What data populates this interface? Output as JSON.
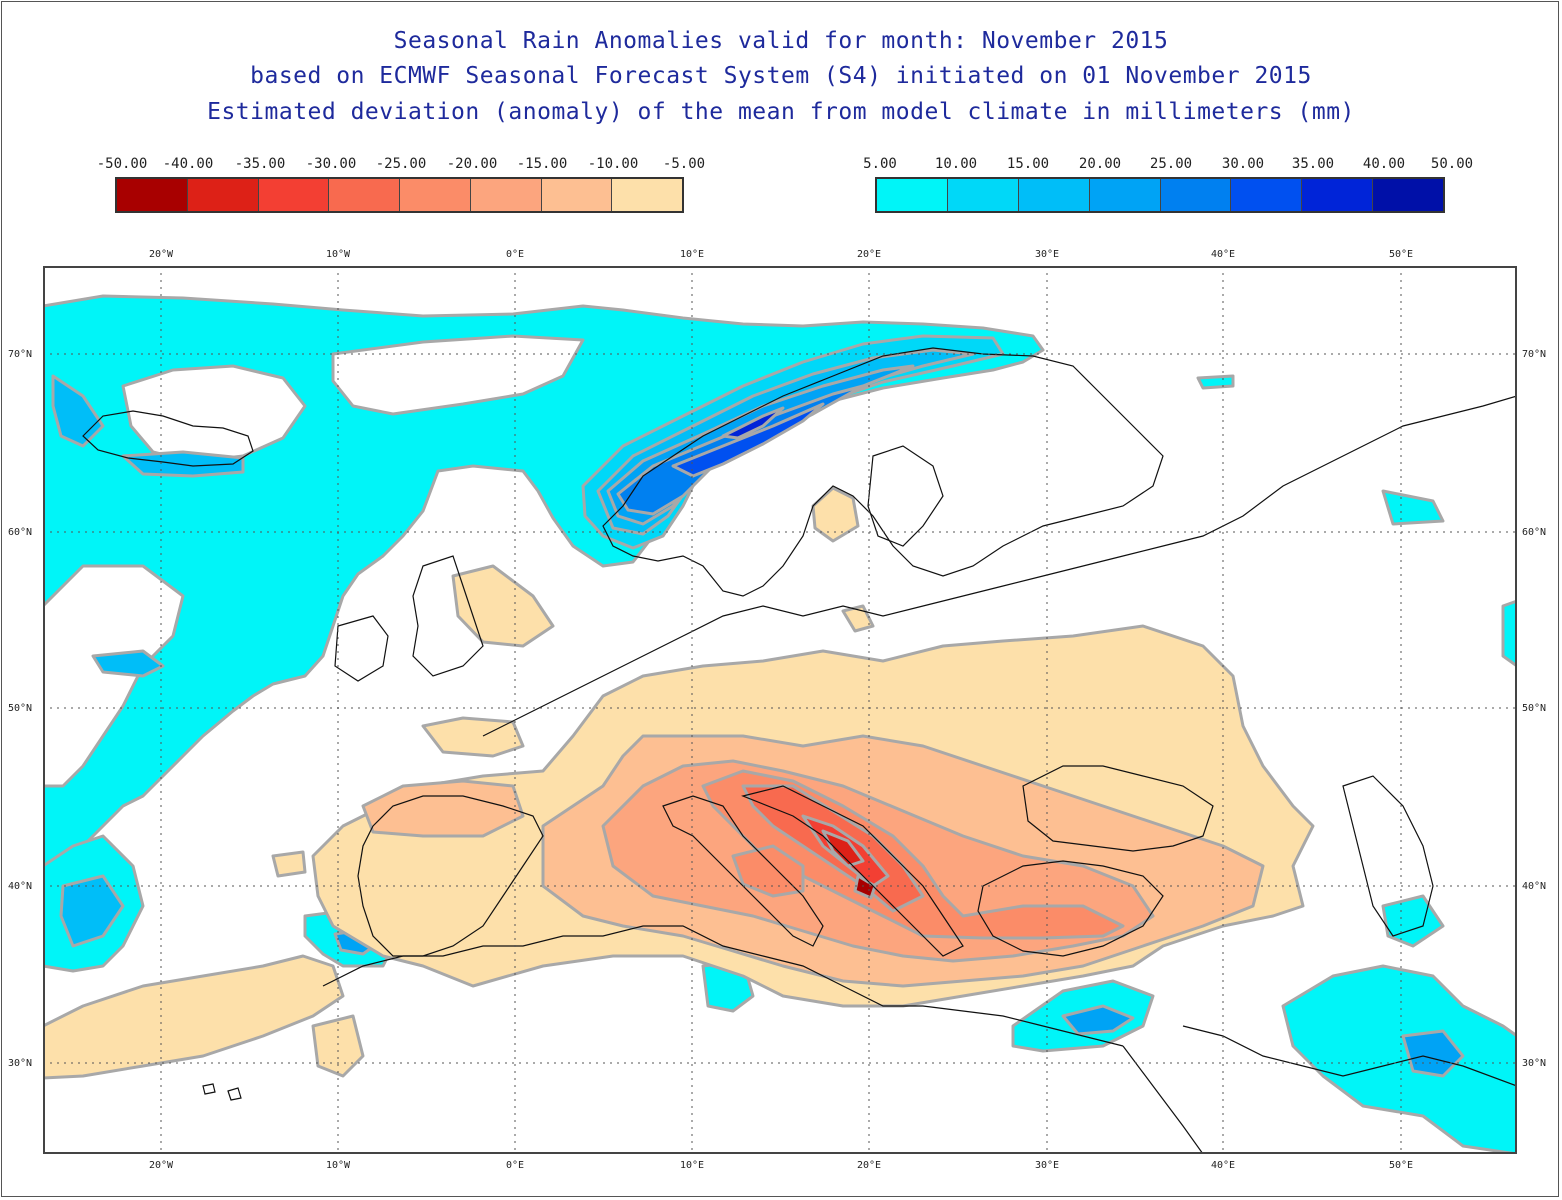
{
  "title": {
    "line1": "Seasonal Rain Anomalies valid for month: November 2015",
    "line2": "based on ECMWF Seasonal Forecast System (S4) initiated on 01 November 2015",
    "line3": "Estimated deviation (anomaly) of the mean from model climate in millimeters (mm)"
  },
  "legend_negative": {
    "labels": [
      "-50.00",
      "-40.00",
      "-35.00",
      "-30.00",
      "-25.00",
      "-20.00",
      "-15.00",
      "-10.00",
      "-5.00"
    ],
    "colors": [
      "#a80000",
      "#dd2117",
      "#f33f33",
      "#f86a4f",
      "#fb8c68",
      "#fca57e",
      "#fdbf92",
      "#fde0aa"
    ]
  },
  "legend_positive": {
    "labels": [
      "5.00",
      "10.00",
      "15.00",
      "20.00",
      "25.00",
      "30.00",
      "35.00",
      "40.00",
      "50.00"
    ],
    "colors": [
      "#00f5f8",
      "#00d8f8",
      "#00bef8",
      "#00a3f5",
      "#0080f0",
      "#0050f0",
      "#0024d8",
      "#0010a8"
    ]
  },
  "axes": {
    "lon_labels": [
      "20°W",
      "10°W",
      "0°E",
      "10°E",
      "20°E",
      "30°E",
      "40°E",
      "50°E"
    ],
    "lat_labels": [
      "70°N",
      "60°N",
      "50°N",
      "40°N",
      "30°N"
    ]
  },
  "colors": {
    "border": "#555555",
    "grid": "#555555",
    "contour": "#a8a8a8",
    "coast": "#111111"
  }
}
